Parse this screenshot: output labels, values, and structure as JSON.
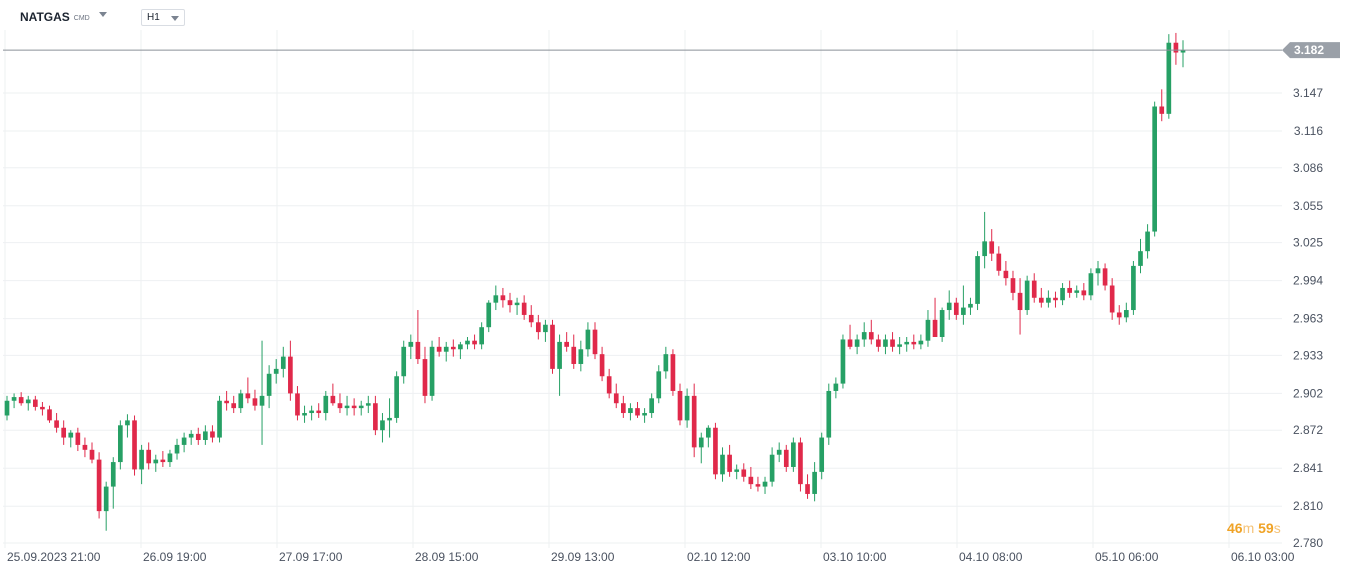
{
  "toolbar": {
    "symbol": "NATGAS",
    "symbol_type": "CMD",
    "interval": "H1"
  },
  "countdown": {
    "minutes": "46",
    "minutes_unit": "m",
    "seconds": "59",
    "seconds_unit": "s"
  },
  "colors": {
    "up": "#26a065",
    "down": "#e0294a",
    "price_line": "#8a9099",
    "price_tag_bg": "#9aa0a8",
    "grid": "#eef0f2",
    "axis_text": "#4a5260",
    "countdown": "#f0a326"
  },
  "chart_data": {
    "type": "candlestick",
    "instrument": "NATGAS",
    "interval": "H1",
    "last_price": 3.182,
    "ylim": [
      2.775,
      3.2
    ],
    "y_ticks": [
      2.78,
      2.81,
      2.841,
      2.872,
      2.902,
      2.933,
      2.963,
      2.994,
      3.025,
      3.055,
      3.086,
      3.116,
      3.147
    ],
    "y_tick_labels": [
      "2.780",
      "2.810",
      "2.841",
      "2.872",
      "2.902",
      "2.933",
      "2.963",
      "2.994",
      "3.025",
      "3.055",
      "3.086",
      "3.116",
      "3.147"
    ],
    "x_tick_labels": [
      "25.09.2023  21:00",
      "26.09  19:00",
      "27.09  17:00",
      "28.09  15:00",
      "29.09  13:00",
      "02.10  12:00",
      "03.10  10:00",
      "04.10  08:00",
      "05.10  06:00",
      "06.10  03:00"
    ],
    "candles": [
      [
        2.884,
        2.9,
        2.88,
        2.896
      ],
      [
        2.896,
        2.902,
        2.89,
        2.899
      ],
      [
        2.899,
        2.903,
        2.892,
        2.894
      ],
      [
        2.894,
        2.9,
        2.888,
        2.897
      ],
      [
        2.897,
        2.9,
        2.888,
        2.891
      ],
      [
        2.891,
        2.895,
        2.884,
        2.889
      ],
      [
        2.889,
        2.892,
        2.878,
        2.88
      ],
      [
        2.88,
        2.886,
        2.87,
        2.874
      ],
      [
        2.874,
        2.88,
        2.86,
        2.866
      ],
      [
        2.866,
        2.872,
        2.858,
        2.87
      ],
      [
        2.87,
        2.874,
        2.855,
        2.86
      ],
      [
        2.86,
        2.866,
        2.85,
        2.856
      ],
      [
        2.856,
        2.862,
        2.845,
        2.848
      ],
      [
        2.848,
        2.854,
        2.8,
        2.806
      ],
      [
        2.806,
        2.83,
        2.79,
        2.826
      ],
      [
        2.826,
        2.85,
        2.808,
        2.846
      ],
      [
        2.846,
        2.88,
        2.84,
        2.876
      ],
      [
        2.876,
        2.885,
        2.866,
        2.88
      ],
      [
        2.88,
        2.884,
        2.835,
        2.84
      ],
      [
        2.84,
        2.86,
        2.828,
        2.856
      ],
      [
        2.856,
        2.862,
        2.84,
        2.845
      ],
      [
        2.845,
        2.852,
        2.838,
        2.848
      ],
      [
        2.848,
        2.855,
        2.842,
        2.846
      ],
      [
        2.846,
        2.856,
        2.842,
        2.853
      ],
      [
        2.853,
        2.865,
        2.848,
        2.86
      ],
      [
        2.86,
        2.87,
        2.854,
        2.866
      ],
      [
        2.866,
        2.872,
        2.86,
        2.869
      ],
      [
        2.869,
        2.874,
        2.86,
        2.864
      ],
      [
        2.864,
        2.876,
        2.86,
        2.871
      ],
      [
        2.871,
        2.876,
        2.862,
        2.866
      ],
      [
        2.866,
        2.9,
        2.862,
        2.896
      ],
      [
        2.896,
        2.904,
        2.888,
        2.894
      ],
      [
        2.894,
        2.9,
        2.886,
        2.89
      ],
      [
        2.89,
        2.905,
        2.886,
        2.902
      ],
      [
        2.902,
        2.915,
        2.894,
        2.898
      ],
      [
        2.898,
        2.905,
        2.888,
        2.892
      ],
      [
        2.892,
        2.945,
        2.86,
        2.9
      ],
      [
        2.9,
        2.925,
        2.89,
        2.918
      ],
      [
        2.918,
        2.93,
        2.91,
        2.922
      ],
      [
        2.922,
        2.94,
        2.915,
        2.932
      ],
      [
        2.932,
        2.945,
        2.896,
        2.902
      ],
      [
        2.902,
        2.908,
        2.88,
        2.884
      ],
      [
        2.884,
        2.892,
        2.878,
        2.886
      ],
      [
        2.886,
        2.892,
        2.88,
        2.888
      ],
      [
        2.888,
        2.894,
        2.882,
        2.886
      ],
      [
        2.886,
        2.904,
        2.88,
        2.9
      ],
      [
        2.9,
        2.91,
        2.892,
        2.894
      ],
      [
        2.894,
        2.902,
        2.886,
        2.89
      ],
      [
        2.89,
        2.9,
        2.884,
        2.892
      ],
      [
        2.892,
        2.898,
        2.884,
        2.89
      ],
      [
        2.89,
        2.896,
        2.884,
        2.892
      ],
      [
        2.892,
        2.9,
        2.886,
        2.894
      ],
      [
        2.894,
        2.9,
        2.868,
        2.872
      ],
      [
        2.872,
        2.886,
        2.862,
        2.88
      ],
      [
        2.88,
        2.898,
        2.866,
        2.882
      ],
      [
        2.882,
        2.92,
        2.878,
        2.916
      ],
      [
        2.916,
        2.945,
        2.91,
        2.94
      ],
      [
        2.94,
        2.95,
        2.93,
        2.944
      ],
      [
        2.944,
        2.97,
        2.926,
        2.93
      ],
      [
        2.93,
        2.94,
        2.894,
        2.9
      ],
      [
        2.9,
        2.945,
        2.896,
        2.94
      ],
      [
        2.94,
        2.948,
        2.932,
        2.936
      ],
      [
        2.936,
        2.944,
        2.928,
        2.94
      ],
      [
        2.94,
        2.946,
        2.932,
        2.938
      ],
      [
        2.938,
        2.944,
        2.93,
        2.942
      ],
      [
        2.942,
        2.948,
        2.938,
        2.945
      ],
      [
        2.945,
        2.95,
        2.938,
        2.942
      ],
      [
        2.942,
        2.96,
        2.938,
        2.956
      ],
      [
        2.956,
        2.978,
        2.952,
        2.976
      ],
      [
        2.976,
        2.99,
        2.97,
        2.982
      ],
      [
        2.982,
        2.988,
        2.972,
        2.978
      ],
      [
        2.978,
        2.984,
        2.968,
        2.974
      ],
      [
        2.974,
        2.98,
        2.966,
        2.976
      ],
      [
        2.976,
        2.982,
        2.962,
        2.966
      ],
      [
        2.966,
        2.974,
        2.956,
        2.96
      ],
      [
        2.96,
        2.966,
        2.946,
        2.952
      ],
      [
        2.952,
        2.962,
        2.944,
        2.958
      ],
      [
        2.958,
        2.962,
        2.918,
        2.922
      ],
      [
        2.922,
        2.95,
        2.9,
        2.944
      ],
      [
        2.944,
        2.952,
        2.936,
        2.94
      ],
      [
        2.94,
        2.95,
        2.922,
        2.926
      ],
      [
        2.926,
        2.945,
        2.92,
        2.938
      ],
      [
        2.938,
        2.96,
        2.932,
        2.954
      ],
      [
        2.954,
        2.96,
        2.93,
        2.934
      ],
      [
        2.934,
        2.94,
        2.912,
        2.916
      ],
      [
        2.916,
        2.922,
        2.898,
        2.902
      ],
      [
        2.902,
        2.91,
        2.89,
        2.894
      ],
      [
        2.894,
        2.9,
        2.882,
        2.886
      ],
      [
        2.886,
        2.894,
        2.88,
        2.89
      ],
      [
        2.89,
        2.895,
        2.882,
        2.884
      ],
      [
        2.884,
        2.89,
        2.878,
        2.886
      ],
      [
        2.886,
        2.902,
        2.882,
        2.898
      ],
      [
        2.898,
        2.925,
        2.894,
        2.92
      ],
      [
        2.92,
        2.94,
        2.914,
        2.934
      ],
      [
        2.934,
        2.938,
        2.9,
        2.904
      ],
      [
        2.904,
        2.91,
        2.876,
        2.88
      ],
      [
        2.88,
        2.906,
        2.874,
        2.9
      ],
      [
        2.9,
        2.91,
        2.85,
        2.858
      ],
      [
        2.858,
        2.87,
        2.845,
        2.866
      ],
      [
        2.866,
        2.876,
        2.858,
        2.874
      ],
      [
        2.874,
        2.878,
        2.832,
        2.836
      ],
      [
        2.836,
        2.858,
        2.83,
        2.852
      ],
      [
        2.852,
        2.86,
        2.834,
        2.838
      ],
      [
        2.838,
        2.844,
        2.832,
        2.84
      ],
      [
        2.84,
        2.845,
        2.83,
        2.834
      ],
      [
        2.834,
        2.842,
        2.824,
        2.828
      ],
      [
        2.828,
        2.834,
        2.822,
        2.826
      ],
      [
        2.826,
        2.834,
        2.82,
        2.83
      ],
      [
        2.83,
        2.858,
        2.826,
        2.852
      ],
      [
        2.852,
        2.862,
        2.846,
        2.856
      ],
      [
        2.856,
        2.86,
        2.838,
        2.842
      ],
      [
        2.842,
        2.866,
        2.838,
        2.862
      ],
      [
        2.862,
        2.866,
        2.822,
        2.828
      ],
      [
        2.828,
        2.836,
        2.816,
        2.82
      ],
      [
        2.82,
        2.846,
        2.814,
        2.838
      ],
      [
        2.838,
        2.87,
        2.832,
        2.866
      ],
      [
        2.866,
        2.91,
        2.86,
        2.904
      ],
      [
        2.904,
        2.915,
        2.898,
        2.91
      ],
      [
        2.91,
        2.95,
        2.906,
        2.946
      ],
      [
        2.946,
        2.958,
        2.938,
        2.94
      ],
      [
        2.94,
        2.95,
        2.934,
        2.946
      ],
      [
        2.946,
        2.96,
        2.94,
        2.952
      ],
      [
        2.952,
        2.962,
        2.942,
        2.946
      ],
      [
        2.946,
        2.95,
        2.936,
        2.94
      ],
      [
        2.94,
        2.95,
        2.934,
        2.946
      ],
      [
        2.946,
        2.952,
        2.936,
        2.94
      ],
      [
        2.94,
        2.948,
        2.934,
        2.942
      ],
      [
        2.942,
        2.948,
        2.936,
        2.944
      ],
      [
        2.944,
        2.95,
        2.938,
        2.942
      ],
      [
        2.942,
        2.95,
        2.938,
        2.945
      ],
      [
        2.945,
        2.97,
        2.94,
        2.962
      ],
      [
        2.962,
        2.98,
        2.95,
        2.948
      ],
      [
        2.948,
        2.972,
        2.944,
        2.97
      ],
      [
        2.97,
        2.986,
        2.962,
        2.976
      ],
      [
        2.976,
        2.98,
        2.962,
        2.966
      ],
      [
        2.966,
        2.99,
        2.958,
        2.972
      ],
      [
        2.972,
        2.98,
        2.966,
        2.975
      ],
      [
        2.975,
        3.018,
        2.97,
        3.014
      ],
      [
        3.014,
        3.05,
        3.004,
        3.026
      ],
      [
        3.026,
        3.036,
        3.01,
        3.016
      ],
      [
        3.016,
        3.022,
        2.998,
        3.002
      ],
      [
        3.002,
        3.01,
        2.99,
        2.996
      ],
      [
        2.996,
        3.002,
        2.978,
        2.984
      ],
      [
        2.984,
        2.996,
        2.95,
        2.97
      ],
      [
        2.97,
        2.998,
        2.966,
        2.994
      ],
      [
        2.994,
        3.0,
        2.976,
        2.98
      ],
      [
        2.98,
        2.988,
        2.972,
        2.976
      ],
      [
        2.976,
        2.986,
        2.972,
        2.98
      ],
      [
        2.98,
        2.985,
        2.972,
        2.978
      ],
      [
        2.978,
        2.992,
        2.974,
        2.988
      ],
      [
        2.988,
        2.994,
        2.98,
        2.984
      ],
      [
        2.984,
        2.99,
        2.98,
        2.986
      ],
      [
        2.986,
        2.992,
        2.978,
        2.982
      ],
      [
        2.982,
        3.004,
        2.978,
        3.0
      ],
      [
        3.0,
        3.01,
        2.99,
        3.004
      ],
      [
        3.004,
        3.008,
        2.986,
        2.99
      ],
      [
        2.99,
        2.996,
        2.962,
        2.968
      ],
      [
        2.968,
        2.974,
        2.958,
        2.964
      ],
      [
        2.964,
        2.976,
        2.96,
        2.97
      ],
      [
        2.97,
        3.01,
        2.966,
        3.006
      ],
      [
        3.006,
        3.028,
        3.0,
        3.018
      ],
      [
        3.018,
        3.04,
        3.012,
        3.034
      ],
      [
        3.034,
        3.14,
        3.03,
        3.136
      ],
      [
        3.136,
        3.15,
        3.124,
        3.13
      ],
      [
        3.13,
        3.195,
        3.126,
        3.188
      ],
      [
        3.188,
        3.196,
        3.17,
        3.18
      ],
      [
        3.18,
        3.19,
        3.168,
        3.182
      ]
    ]
  }
}
